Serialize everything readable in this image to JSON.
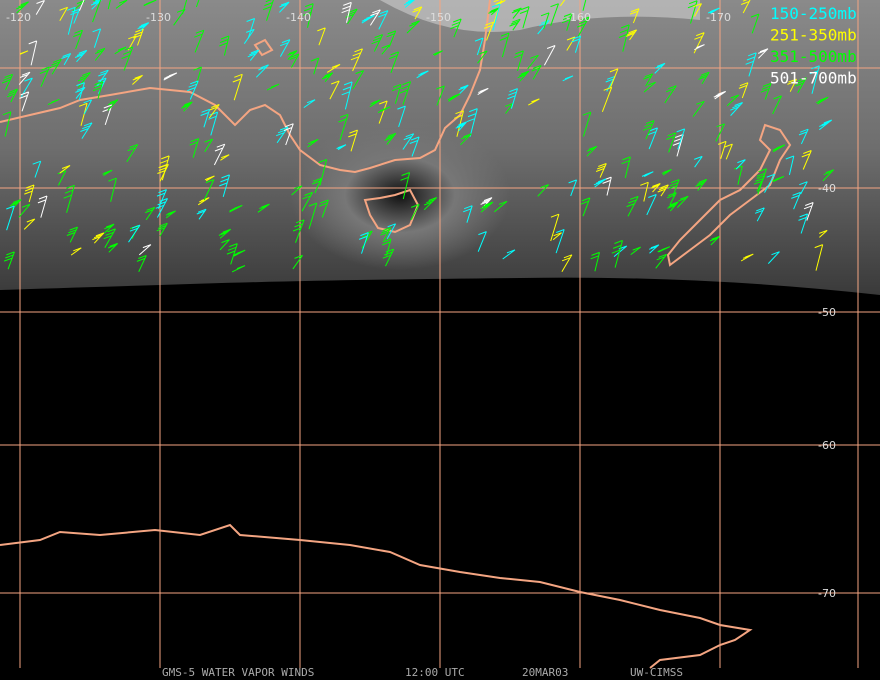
{
  "map": {
    "longitude_labels": [
      -120,
      -130,
      -140,
      -150,
      -160,
      -170
    ],
    "latitude_labels": [
      -40,
      -50,
      -60,
      -70
    ],
    "legend": [
      {
        "label": "150-250mb",
        "color": "#00ffff"
      },
      {
        "label": "251-350mb",
        "color": "#ffff00"
      },
      {
        "label": "351-500mb",
        "color": "#00ff00"
      },
      {
        "label": "501-700mb",
        "color": "#ffffff"
      }
    ],
    "footer": [
      "GMS-5 WATER VAPOR WINDS",
      "12:00 UTC",
      "20MAR03",
      "UW-CIMSS"
    ]
  }
}
